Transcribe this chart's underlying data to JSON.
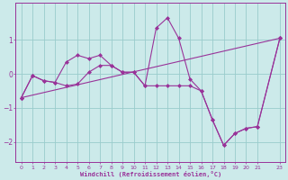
{
  "xlabel": "Windchill (Refroidissement éolien,°C)",
  "background_color": "#cceaea",
  "line_color": "#993399",
  "grid_color": "#99cccc",
  "xlim": [
    -0.5,
    23.5
  ],
  "ylim": [
    -2.6,
    2.1
  ],
  "yticks": [
    -2,
    -1,
    0,
    1
  ],
  "xtick_labels": [
    "0",
    "1",
    "2",
    "3",
    "4",
    "5",
    "6",
    "7",
    "8",
    "9",
    "10",
    "11",
    "12",
    "13",
    "14",
    "15",
    "16",
    "17",
    "18",
    "19",
    "20",
    "21",
    "23"
  ],
  "xtick_pos": [
    0,
    1,
    2,
    3,
    4,
    5,
    6,
    7,
    8,
    9,
    10,
    11,
    12,
    13,
    14,
    15,
    16,
    17,
    18,
    19,
    20,
    21,
    23
  ],
  "series1_x": [
    0,
    1,
    2,
    3,
    4,
    5,
    6,
    7,
    8,
    9,
    10,
    11,
    12,
    13,
    14,
    15,
    16,
    17,
    18,
    19,
    20,
    21,
    23
  ],
  "series1_y": [
    -0.7,
    -0.05,
    -0.2,
    -0.25,
    0.35,
    0.55,
    0.45,
    0.55,
    0.25,
    0.05,
    0.05,
    -0.35,
    1.35,
    1.65,
    1.05,
    -0.15,
    -0.5,
    -1.35,
    -2.1,
    -1.75,
    -1.6,
    -1.55,
    1.05
  ],
  "series2_x": [
    0,
    1,
    2,
    3,
    4,
    5,
    6,
    7,
    8,
    9,
    10,
    11,
    12,
    13,
    14,
    15,
    16,
    17,
    18,
    19,
    20,
    21,
    23
  ],
  "series2_y": [
    -0.7,
    -0.05,
    -0.2,
    -0.25,
    -0.35,
    -0.3,
    0.05,
    0.25,
    0.25,
    0.05,
    0.05,
    -0.35,
    -0.35,
    -0.35,
    -0.35,
    -0.35,
    -0.5,
    -1.35,
    -2.1,
    -1.75,
    -1.6,
    -1.55,
    1.05
  ],
  "series3_x": [
    0,
    23
  ],
  "series3_y": [
    -0.7,
    1.05
  ]
}
